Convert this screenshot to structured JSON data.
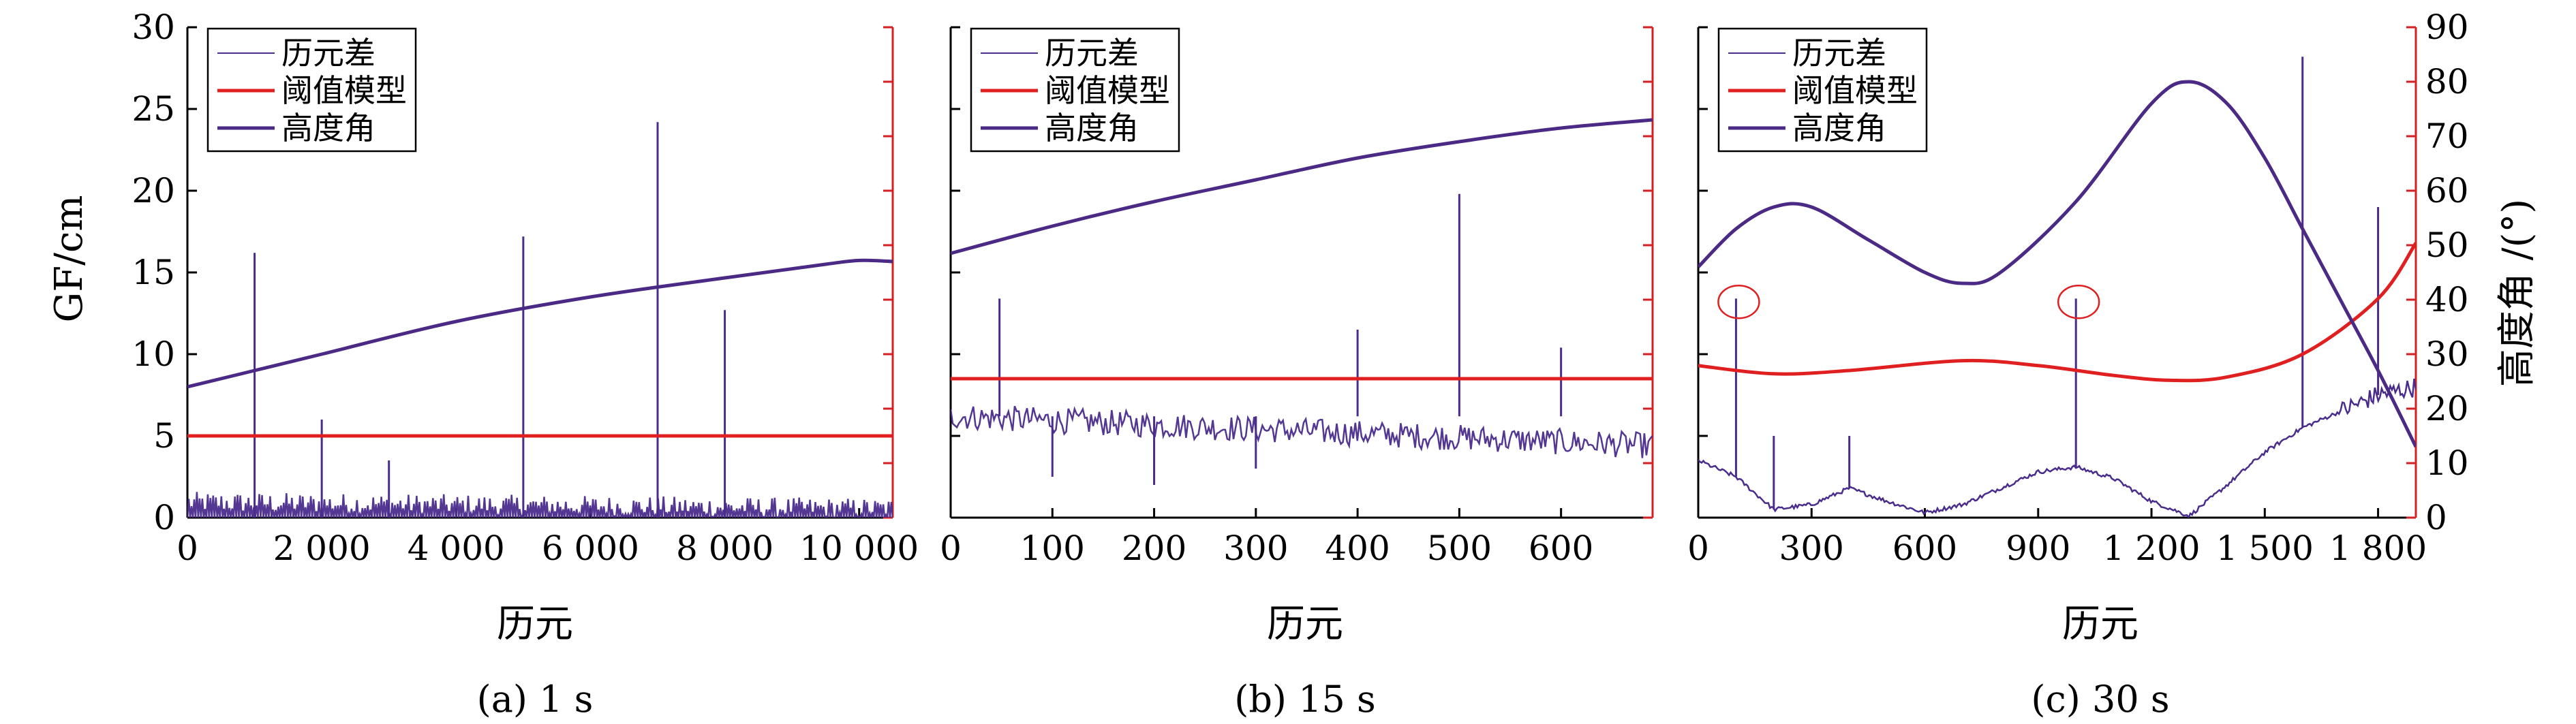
{
  "figure": {
    "ylabel_left": "GF/cm",
    "ylabel_right": "高度角 /(°)",
    "legend": [
      "历元差",
      "阈值模型",
      "高度角"
    ],
    "colors": {
      "diff": "#4a2c8c",
      "threshold": "#e02020",
      "elevation": "#4b2a85",
      "axis_right": "#d62020"
    }
  },
  "chart_data": [
    {
      "type": "line",
      "caption": "(a) 1 s",
      "xlabel": "历元",
      "ylabel": "GF/cm",
      "xlim": [
        0,
        10500
      ],
      "ylim": [
        0,
        30
      ],
      "y2lim": [
        0,
        90
      ],
      "xticks": [
        0,
        2000,
        4000,
        6000,
        8000,
        10000
      ],
      "xtick_labels": [
        "0",
        "2 000",
        "4 000",
        "6 000",
        "8 000",
        "10 000"
      ],
      "yticks": [
        0,
        5,
        10,
        15,
        20,
        25,
        30
      ],
      "y2ticks": [],
      "legend_position": "top-left",
      "series": [
        {
          "name": "阈值模型",
          "axis": "left",
          "x": [
            0,
            10500
          ],
          "y": [
            5,
            5
          ]
        },
        {
          "name": "高度角",
          "axis": "right",
          "x": [
            0,
            1000,
            2000,
            4000,
            6000,
            8000,
            9500,
            10000,
            10500
          ],
          "y": [
            24,
            27,
            30,
            36,
            40.5,
            44,
            46.5,
            47.2,
            47
          ]
        },
        {
          "name": "历元差",
          "axis": "left",
          "noise": {
            "base": 0.7,
            "amp": 0.9,
            "end_base": 0.3
          },
          "spikes": [
            {
              "x": 1000,
              "y": 16.2
            },
            {
              "x": 2000,
              "y": 6
            },
            {
              "x": 3000,
              "y": 3.5
            },
            {
              "x": 5000,
              "y": 17.2
            },
            {
              "x": 7000,
              "y": 24.2
            },
            {
              "x": 8000,
              "y": 12.7
            }
          ]
        }
      ]
    },
    {
      "type": "line",
      "caption": "(b) 15 s",
      "xlabel": "历元",
      "ylabel": "",
      "xlim": [
        0,
        690
      ],
      "ylim": [
        0,
        30
      ],
      "y2lim": [
        0,
        90
      ],
      "xticks": [
        0,
        100,
        200,
        300,
        400,
        500,
        600
      ],
      "xtick_labels": [
        "0",
        "100",
        "200",
        "300",
        "400",
        "500",
        "600"
      ],
      "yticks": [],
      "y2ticks": [],
      "legend_position": "top-left",
      "series": [
        {
          "name": "阈值模型",
          "axis": "left",
          "x": [
            0,
            690
          ],
          "y": [
            8.5,
            8.5
          ]
        },
        {
          "name": "高度角",
          "axis": "right",
          "x": [
            0,
            100,
            200,
            300,
            400,
            500,
            600,
            690
          ],
          "y": [
            48.5,
            53.5,
            58,
            62,
            66,
            69,
            71.5,
            73
          ]
        },
        {
          "name": "历元差",
          "axis": "left",
          "noise": {
            "base": 6.2,
            "amp": 1.0,
            "end_base": 4.4
          },
          "spikes": [
            {
              "x": 48,
              "y": 13.4
            },
            {
              "x": 100,
              "y": 2.5
            },
            {
              "x": 200,
              "y": 2.0
            },
            {
              "x": 300,
              "y": 3.0
            },
            {
              "x": 400,
              "y": 11.5
            },
            {
              "x": 500,
              "y": 19.8
            },
            {
              "x": 600,
              "y": 10.4
            }
          ]
        }
      ]
    },
    {
      "type": "line",
      "caption": "(c) 30 s",
      "xlabel": "历元",
      "ylabel": "高度角 /(°)",
      "xlim": [
        0,
        1900
      ],
      "ylim": [
        0,
        30
      ],
      "y2lim": [
        0,
        90
      ],
      "xticks": [
        0,
        300,
        600,
        900,
        1200,
        1500,
        1800
      ],
      "xtick_labels": [
        "0",
        "300",
        "600",
        "900",
        "1 200",
        "1 500",
        "1 800"
      ],
      "yticks": [],
      "y2ticks": [
        0,
        10,
        20,
        30,
        40,
        50,
        60,
        70,
        80,
        90
      ],
      "legend_position": "top-left",
      "series": [
        {
          "name": "阈值模型",
          "axis": "left",
          "x": [
            0,
            200,
            400,
            700,
            900,
            1100,
            1250,
            1400,
            1600,
            1800,
            1900
          ],
          "y": [
            9.3,
            8.8,
            9.0,
            9.6,
            9.3,
            8.7,
            8.4,
            8.6,
            10.0,
            13.4,
            16.8
          ]
        },
        {
          "name": "高度角",
          "axis": "right",
          "x": [
            0,
            100,
            200,
            300,
            450,
            600,
            700,
            800,
            1000,
            1200,
            1300,
            1400,
            1500,
            1600,
            1700,
            1800,
            1900
          ],
          "y": [
            46,
            53,
            57,
            57,
            51,
            45,
            43,
            45,
            58,
            76,
            80,
            76,
            66,
            53,
            40,
            27,
            13
          ]
        },
        {
          "name": "历元差",
          "axis": "left",
          "profile": {
            "x": [
              0,
              100,
              200,
              300,
              400,
              500,
              600,
              700,
              800,
              900,
              1000,
              1100,
              1200,
              1300,
              1400,
              1500,
              1600,
              1700,
              1800,
              1900
            ],
            "y": [
              3.5,
              2.5,
              0.5,
              0.8,
              1.8,
              1.0,
              0.3,
              0.8,
              1.8,
              2.8,
              3.1,
              2.4,
              1.0,
              0.1,
              2.0,
              4.0,
              5.5,
              6.5,
              7.5,
              8.0
            ]
          },
          "spikes": [
            {
              "x": 100,
              "y": 13.4
            },
            {
              "x": 200,
              "y": 5.0
            },
            {
              "x": 400,
              "y": 5.0
            },
            {
              "x": 1000,
              "y": 13.4
            },
            {
              "x": 1600,
              "y": 28.2
            },
            {
              "x": 1800,
              "y": 19.0
            }
          ]
        }
      ],
      "annotations": [
        {
          "shape": "ellipse",
          "x": 100,
          "y": 13.2
        },
        {
          "shape": "ellipse",
          "x": 1000,
          "y": 13.2
        }
      ]
    }
  ]
}
